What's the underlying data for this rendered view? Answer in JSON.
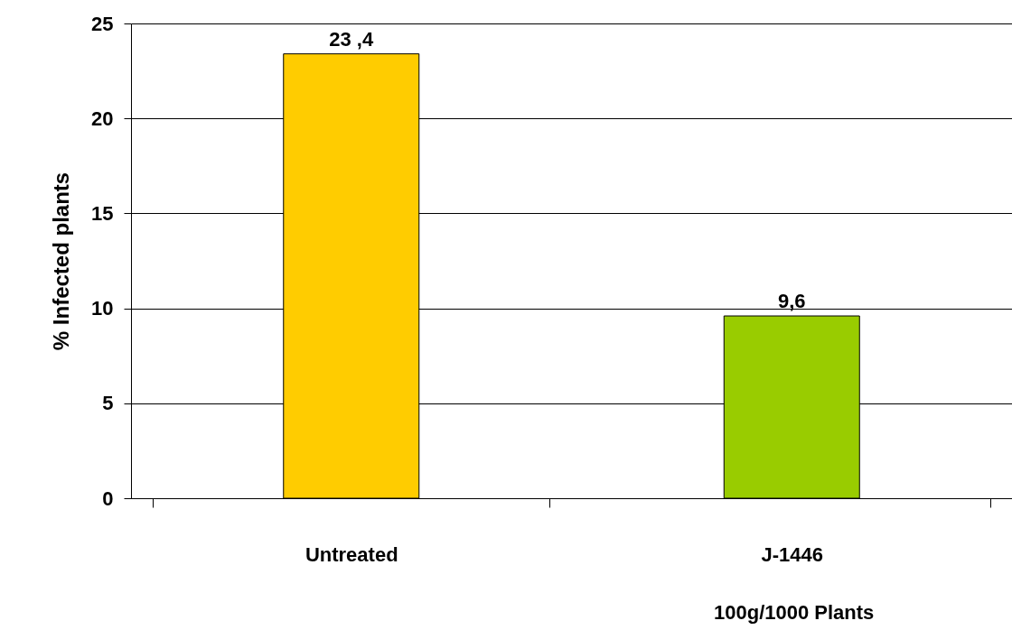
{
  "chart_data": {
    "type": "bar",
    "ylabel": "% Infected plants",
    "categories": [
      "Untreated",
      "J-1446"
    ],
    "colors": [
      "#ffcc00",
      "#99cc00"
    ],
    "values": [
      23.4,
      9.6
    ],
    "value_labels": [
      "23 ,4",
      "9,6"
    ],
    "ylim": [
      0,
      25
    ],
    "yticks": [
      0,
      5,
      10,
      15,
      20,
      25
    ],
    "grid": "y",
    "annotations": [
      "100g/1000 Plants"
    ]
  }
}
